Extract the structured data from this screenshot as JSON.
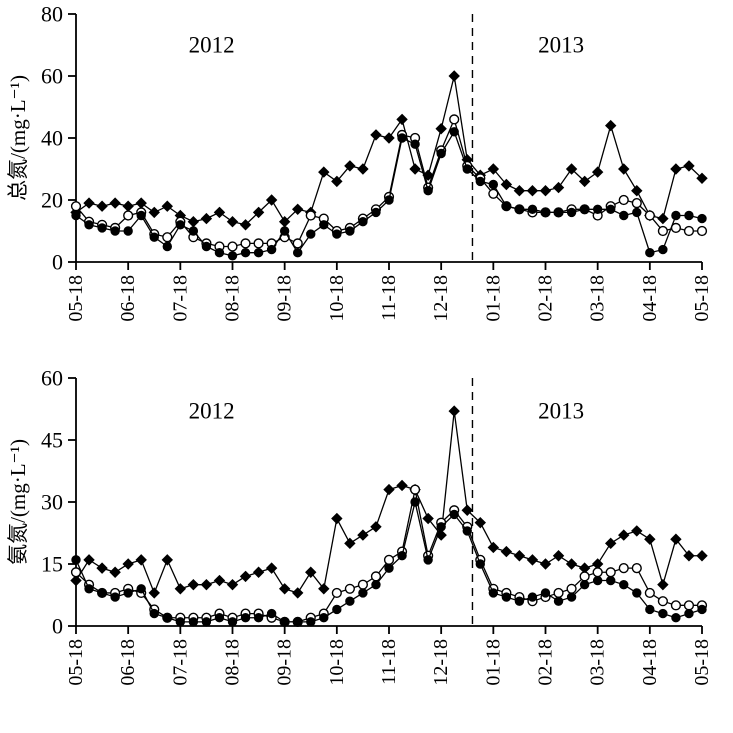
{
  "figure": {
    "background": "#ffffff",
    "line_color": "#000000"
  },
  "chart_data": [
    {
      "type": "line",
      "title": "",
      "ylabel": "总氮/(mg·L⁻¹)",
      "xlabel": "",
      "ylim": [
        0,
        80
      ],
      "yticks": [
        0,
        20,
        40,
        60,
        80
      ],
      "xtick_values": [
        0,
        1,
        2,
        3,
        4,
        5,
        6,
        7,
        8,
        9,
        10,
        11,
        12
      ],
      "xtick_labels": [
        "05-18",
        "06-18",
        "07-18",
        "08-18",
        "09-18",
        "10-18",
        "11-18",
        "12-18",
        "01-18",
        "02-18",
        "03-18",
        "04-18",
        "05-18"
      ],
      "divider_x": 7.6,
      "annotations": [
        {
          "text": "2012",
          "x": 2.6,
          "y": 70
        },
        {
          "text": "2013",
          "x": 9.3,
          "y": 70
        }
      ],
      "x": [
        0,
        0.25,
        0.5,
        0.75,
        1,
        1.25,
        1.5,
        1.75,
        2,
        2.25,
        2.5,
        2.75,
        3,
        3.25,
        3.5,
        3.75,
        4,
        4.25,
        4.5,
        4.75,
        5,
        5.25,
        5.5,
        5.75,
        6,
        6.25,
        6.5,
        6.75,
        7,
        7.25,
        7.5,
        7.75,
        8,
        8.25,
        8.5,
        8.75,
        9,
        9.25,
        9.5,
        9.75,
        10,
        10.25,
        10.5,
        10.75,
        11,
        11.25,
        11.5,
        11.75,
        12
      ],
      "series": [
        {
          "name": "filled-diamond",
          "marker": "diamond",
          "values": [
            16,
            19,
            18,
            19,
            18,
            19,
            16,
            18,
            15,
            13,
            14,
            16,
            13,
            12,
            16,
            20,
            13,
            17,
            16,
            29,
            26,
            31,
            30,
            41,
            40,
            46,
            30,
            28,
            43,
            60,
            33,
            28,
            30,
            25,
            23,
            23,
            23,
            24,
            30,
            26,
            29,
            44,
            30,
            23,
            15,
            14,
            30,
            31,
            27
          ]
        },
        {
          "name": "open-circle",
          "marker": "open-circle",
          "values": [
            18,
            13,
            12,
            11,
            15,
            16,
            9,
            8,
            13,
            8,
            6,
            5,
            5,
            6,
            6,
            6,
            8,
            6,
            15,
            14,
            10,
            11,
            14,
            17,
            21,
            41,
            40,
            24,
            36,
            46,
            31,
            27,
            22,
            18,
            17,
            16,
            16,
            16,
            17,
            17,
            15,
            18,
            20,
            19,
            15,
            10,
            11,
            10,
            10
          ]
        },
        {
          "name": "filled-circle",
          "marker": "filled-circle",
          "values": [
            15,
            12,
            11,
            10,
            10,
            15,
            8,
            5,
            12,
            10,
            5,
            3,
            2,
            3,
            3,
            4,
            10,
            3,
            9,
            12,
            9,
            10,
            13,
            16,
            20,
            40,
            38,
            23,
            35,
            42,
            30,
            26,
            25,
            18,
            17,
            17,
            16,
            16,
            16,
            17,
            17,
            17,
            15,
            16,
            3,
            4,
            15,
            15,
            14
          ]
        }
      ]
    },
    {
      "type": "line",
      "title": "",
      "ylabel": "氨氮/(mg·L⁻¹)",
      "xlabel": "",
      "ylim": [
        0,
        60
      ],
      "yticks": [
        0,
        15,
        30,
        45,
        60
      ],
      "xtick_values": [
        0,
        1,
        2,
        3,
        4,
        5,
        6,
        7,
        8,
        9,
        10,
        11,
        12
      ],
      "xtick_labels": [
        "05-18",
        "06-18",
        "07-18",
        "08-18",
        "09-18",
        "10-18",
        "11-18",
        "12-18",
        "01-18",
        "02-18",
        "03-18",
        "04-18",
        "05-18"
      ],
      "divider_x": 7.6,
      "annotations": [
        {
          "text": "2012",
          "x": 2.6,
          "y": 52
        },
        {
          "text": "2013",
          "x": 9.3,
          "y": 52
        }
      ],
      "x": [
        0,
        0.25,
        0.5,
        0.75,
        1,
        1.25,
        1.5,
        1.75,
        2,
        2.25,
        2.5,
        2.75,
        3,
        3.25,
        3.5,
        3.75,
        4,
        4.25,
        4.5,
        4.75,
        5,
        5.25,
        5.5,
        5.75,
        6,
        6.25,
        6.5,
        6.75,
        7,
        7.25,
        7.5,
        7.75,
        8,
        8.25,
        8.5,
        8.75,
        9,
        9.25,
        9.5,
        9.75,
        10,
        10.25,
        10.5,
        10.75,
        11,
        11.25,
        11.5,
        11.75,
        12
      ],
      "series": [
        {
          "name": "filled-diamond",
          "marker": "diamond",
          "values": [
            11,
            16,
            14,
            13,
            15,
            16,
            8,
            16,
            9,
            10,
            10,
            11,
            10,
            12,
            13,
            14,
            9,
            8,
            13,
            9,
            26,
            20,
            22,
            24,
            33,
            34,
            33,
            26,
            22,
            52,
            28,
            25,
            19,
            18,
            17,
            16,
            15,
            17,
            15,
            14,
            15,
            20,
            22,
            23,
            21,
            10,
            21,
            17,
            17
          ]
        },
        {
          "name": "open-circle",
          "marker": "open-circle",
          "values": [
            13,
            10,
            8,
            8,
            9,
            8,
            4,
            2,
            2,
            2,
            2,
            3,
            2,
            3,
            3,
            2,
            1,
            1,
            2,
            3,
            8,
            9,
            10,
            12,
            16,
            18,
            33,
            17,
            25,
            28,
            24,
            16,
            9,
            8,
            7,
            6,
            7,
            8,
            9,
            12,
            13,
            13,
            14,
            14,
            8,
            6,
            5,
            5,
            5
          ]
        },
        {
          "name": "filled-circle",
          "marker": "filled-circle",
          "values": [
            16,
            9,
            8,
            7,
            8,
            9,
            3,
            2,
            1,
            1,
            1,
            2,
            1,
            2,
            2,
            3,
            1,
            1,
            1,
            2,
            4,
            6,
            8,
            10,
            14,
            17,
            30,
            16,
            24,
            27,
            23,
            15,
            8,
            7,
            6,
            7,
            8,
            6,
            7,
            10,
            11,
            11,
            10,
            8,
            4,
            3,
            2,
            3,
            4
          ]
        }
      ]
    }
  ]
}
